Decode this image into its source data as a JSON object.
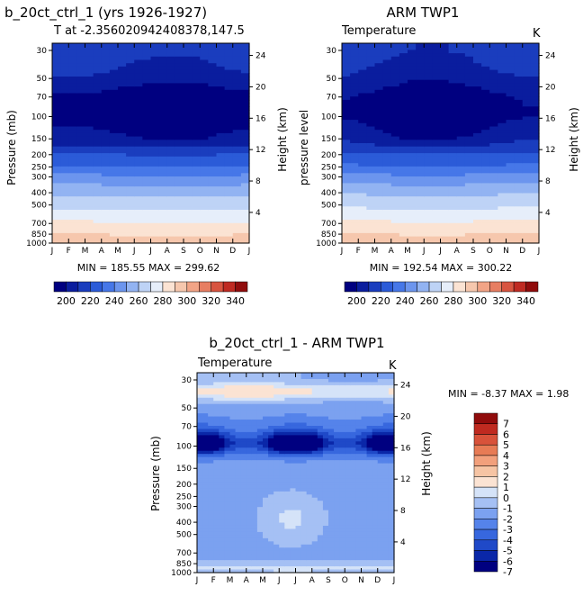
{
  "figure": {
    "panel1_title": "b_20ct_ctrl_1 (yrs 1926-1927)",
    "panel1_subtitle": "T at -2.356020942408378,147.5",
    "panel2_title": "ARM TWP1",
    "panel3_title": "b_20ct_ctrl_1 - ARM TWP1",
    "variable_label": "Temperature",
    "units": "K",
    "yleft_label": "Pressure (mb)",
    "yleft_label_obs": "pressure level",
    "yright_label": "Height (km)",
    "panel1_minmax": "MIN = 185.55 MAX = 299.62",
    "panel2_minmax": "MIN = 192.54 MAX = 300.22",
    "panel3_minmax": "MIN = -8.37 MAX = 1.98"
  },
  "chart_data": [
    {
      "type": "heatmap",
      "title": "b_20ct_ctrl_1 (yrs 1926-1927)",
      "subtitle": "T at -2.356020942408378,147.5",
      "annotation": "Temperature",
      "units": "K",
      "x": [
        "J",
        "F",
        "M",
        "A",
        "M",
        "J",
        "J",
        "A",
        "S",
        "O",
        "N",
        "D",
        "J"
      ],
      "pressure_ticks": [
        30,
        50,
        70,
        100,
        150,
        200,
        250,
        300,
        400,
        500,
        700,
        850,
        1000
      ],
      "height_ticks_km": [
        4,
        8,
        12,
        16,
        20,
        24
      ],
      "ylabel": "Pressure (mb)",
      "ylabel_right": "Height (km)",
      "min": 185.55,
      "max": 299.62,
      "profile_k": [
        [
          30,
          215
        ],
        [
          50,
          206
        ],
        [
          70,
          194
        ],
        [
          100,
          192
        ],
        [
          150,
          202
        ],
        [
          200,
          220
        ],
        [
          250,
          230
        ],
        [
          300,
          242
        ],
        [
          400,
          257
        ],
        [
          500,
          266
        ],
        [
          700,
          281
        ],
        [
          850,
          289
        ],
        [
          1000,
          298
        ]
      ],
      "colorbar_ticks": [
        200,
        220,
        240,
        260,
        280,
        300,
        320,
        340
      ]
    },
    {
      "type": "heatmap",
      "title": "ARM TWP1",
      "annotation": "Temperature",
      "units": "K",
      "x": [
        "J",
        "F",
        "M",
        "A",
        "M",
        "J",
        "J",
        "A",
        "S",
        "O",
        "N",
        "D",
        "J"
      ],
      "pressure_ticks": [
        30,
        50,
        70,
        100,
        150,
        200,
        250,
        300,
        400,
        500,
        700,
        850,
        1000
      ],
      "height_ticks_km": [
        4,
        8,
        12,
        16,
        20,
        24
      ],
      "ylabel": "pressure level",
      "ylabel_right": "Height (km)",
      "min": 192.54,
      "max": 300.22,
      "profile_k": [
        [
          30,
          214
        ],
        [
          50,
          205
        ],
        [
          70,
          196
        ],
        [
          100,
          195
        ],
        [
          150,
          203
        ],
        [
          200,
          221
        ],
        [
          250,
          231
        ],
        [
          300,
          243
        ],
        [
          400,
          258
        ],
        [
          500,
          267
        ],
        [
          700,
          282
        ],
        [
          850,
          290
        ],
        [
          1000,
          299
        ]
      ],
      "colorbar_ticks": [
        200,
        220,
        240,
        260,
        280,
        300,
        320,
        340
      ]
    },
    {
      "type": "heatmap",
      "title": "b_20ct_ctrl_1 - ARM TWP1",
      "annotation": "Temperature",
      "units": "K",
      "x": [
        "J",
        "F",
        "M",
        "A",
        "M",
        "J",
        "J",
        "A",
        "S",
        "O",
        "N",
        "D",
        "J"
      ],
      "pressure_ticks": [
        30,
        50,
        70,
        100,
        150,
        200,
        250,
        300,
        400,
        500,
        700,
        850,
        1000
      ],
      "height_ticks_km": [
        4,
        8,
        12,
        16,
        20,
        24
      ],
      "ylabel": "Pressure (mb)",
      "ylabel_right": "Height (km)",
      "min": -8.37,
      "max": 1.98,
      "colorbar_ticks": [
        7,
        6,
        5,
        4,
        3,
        2,
        1,
        0,
        -1,
        -2,
        -3,
        -4,
        -5,
        -6,
        -7
      ]
    }
  ],
  "colors": {
    "abs_scale": [
      "#000080",
      "#0a1d9e",
      "#1a3dbe",
      "#2b5bd8",
      "#4677e8",
      "#6c95ee",
      "#92b3f2",
      "#bed3f6",
      "#e6eefa",
      "#fbe3d3",
      "#f6c7ad",
      "#f2a486",
      "#e77e62",
      "#d85440",
      "#bf2a22",
      "#900c0c"
    ],
    "diff_scale": [
      "#000080",
      "#0a27a8",
      "#1f49c8",
      "#3767de",
      "#5583ea",
      "#7ba1f0",
      "#a5c0f4",
      "#d5e3f8",
      "#fbe3d3",
      "#f6c4a4",
      "#f2a07c",
      "#e77b55",
      "#d8523a",
      "#bf2a20",
      "#900c0c"
    ]
  }
}
